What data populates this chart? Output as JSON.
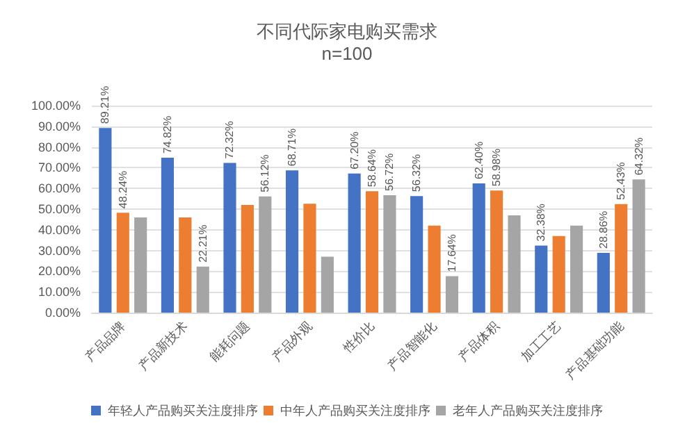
{
  "chart_data": {
    "type": "bar",
    "title": "不同代际家电购买需求",
    "subtitle": "n=100",
    "categories": [
      "产品品牌",
      "产品新技术",
      "能耗问题",
      "产品外观",
      "性价比",
      "产品智能化",
      "产品体积",
      "加工工艺",
      "产品基础功能"
    ],
    "series": [
      {
        "name": "年轻人产品购买关注度排序",
        "color": "#4472c4",
        "values": [
          89.21,
          74.82,
          72.32,
          68.71,
          67.2,
          56.32,
          62.4,
          32.38,
          28.86
        ],
        "value_labels": [
          "89.21%",
          "74.82%",
          "72.32%",
          "68.71%",
          "67.20%",
          "56.32%",
          "62.40%",
          "32.38%",
          "28.86%"
        ]
      },
      {
        "name": "中年人产品购买关注度排序",
        "color": "#ed7d31",
        "values": [
          48.24,
          46,
          52,
          52.6,
          58.64,
          42,
          58.98,
          37,
          52.43
        ],
        "value_labels": [
          "48.24%",
          null,
          null,
          null,
          "58.64%",
          null,
          "58.98%",
          null,
          "52.43%"
        ]
      },
      {
        "name": "老年人产品购买关注度排序",
        "color": "#a5a5a5",
        "values": [
          46,
          22.21,
          56.12,
          27,
          56.72,
          17.64,
          47,
          42,
          64.32
        ],
        "value_labels": [
          null,
          "22.21%",
          "56.12%",
          null,
          "56.72%",
          "17.64%",
          null,
          null,
          "64.32%"
        ]
      }
    ],
    "ylim": [
      0,
      100
    ],
    "yticks": [
      {
        "value": 0,
        "label": "0.00%"
      },
      {
        "value": 10,
        "label": "10.00%"
      },
      {
        "value": 20,
        "label": "20.00%"
      },
      {
        "value": 30,
        "label": "30.00%"
      },
      {
        "value": 40,
        "label": "40.00%"
      },
      {
        "value": 50,
        "label": "50.00%"
      },
      {
        "value": 60,
        "label": "60.00%"
      },
      {
        "value": 70,
        "label": "70.00%"
      },
      {
        "value": 80,
        "label": "80.00%"
      },
      {
        "value": 90,
        "label": "90.00%"
      },
      {
        "value": 100,
        "label": "100.00%"
      }
    ],
    "grid": "y",
    "legend": "bottom"
  }
}
